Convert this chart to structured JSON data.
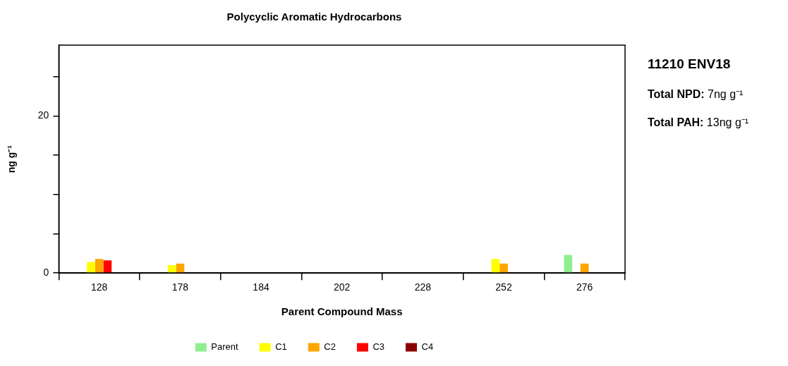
{
  "chart_data": {
    "type": "bar",
    "title": "Polycyclic Aromatic Hydrocarbons",
    "xlabel": "Parent Compound Mass",
    "ylabel": "ng g⁻¹",
    "categories": [
      "128",
      "178",
      "184",
      "202",
      "228",
      "252",
      "276"
    ],
    "series": [
      {
        "name": "Parent",
        "color": "#90ee90",
        "values": [
          null,
          null,
          null,
          null,
          null,
          null,
          2.3
        ]
      },
      {
        "name": "C1",
        "color": "#ffff00",
        "values": [
          1.4,
          1.0,
          null,
          null,
          null,
          1.8,
          null
        ]
      },
      {
        "name": "C2",
        "color": "#ffa500",
        "values": [
          1.8,
          1.2,
          null,
          null,
          null,
          1.2,
          1.2
        ]
      },
      {
        "name": "C3",
        "color": "#ff0000",
        "values": [
          1.6,
          null,
          null,
          null,
          null,
          null,
          null
        ]
      },
      {
        "name": "C4",
        "color": "#8b0000",
        "values": [
          null,
          null,
          null,
          null,
          null,
          null,
          null
        ]
      }
    ],
    "ylim": [
      0,
      29
    ],
    "yticks": [
      0,
      {
        "value": 5,
        "label": null
      },
      {
        "value": 10,
        "label": null
      },
      {
        "value": 15,
        "label": null
      },
      20,
      {
        "value": 25,
        "label": null
      }
    ],
    "grid": false,
    "legend": "bottom",
    "annotations": [
      "11210 ENV18",
      "Total NPD: 7ng g⁻¹",
      "Total PAH: 13ng g⁻¹"
    ]
  }
}
